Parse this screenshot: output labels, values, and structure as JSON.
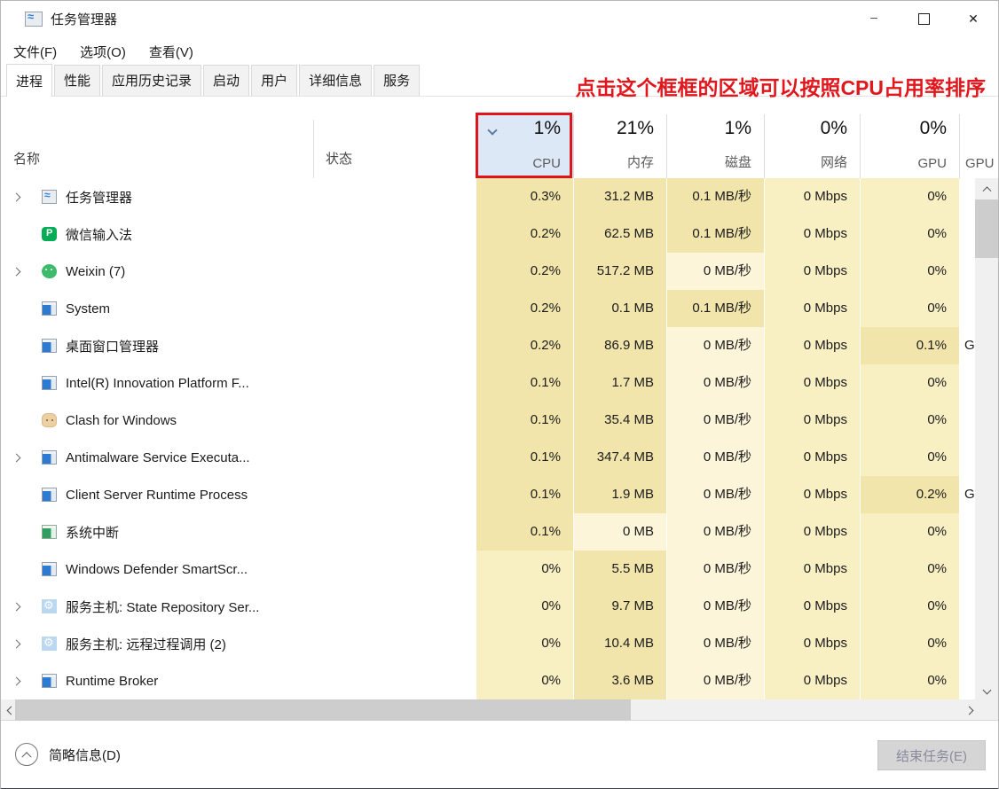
{
  "window": {
    "title": "任务管理器"
  },
  "menu": {
    "items": [
      "文件(F)",
      "选项(O)",
      "查看(V)"
    ]
  },
  "tabs": {
    "items": [
      {
        "label": "进程",
        "selected": true
      },
      {
        "label": "性能",
        "selected": false
      },
      {
        "label": "应用历史记录",
        "selected": false
      },
      {
        "label": "启动",
        "selected": false
      },
      {
        "label": "用户",
        "selected": false
      },
      {
        "label": "详细信息",
        "selected": false
      },
      {
        "label": "服务",
        "selected": false
      }
    ]
  },
  "annotation": {
    "text": "点击这个框框的区域可以按照CPU占用率排序"
  },
  "table": {
    "name_header": "名称",
    "status_header": "状态",
    "columns": [
      {
        "key": "cpu",
        "percent": "1%",
        "label": "CPU",
        "sorted": true
      },
      {
        "key": "memory",
        "percent": "21%",
        "label": "内存",
        "sorted": false
      },
      {
        "key": "disk",
        "percent": "1%",
        "label": "磁盘",
        "sorted": false
      },
      {
        "key": "network",
        "percent": "0%",
        "label": "网络",
        "sorted": false
      },
      {
        "key": "gpu",
        "percent": "0%",
        "label": "GPU",
        "sorted": false
      }
    ],
    "gpu_engine_header": "GPU",
    "rows": [
      {
        "name": "任务管理器",
        "icon": "taskmgr",
        "expandable": true,
        "status": "",
        "cpu": "0.3%",
        "memory": "31.2 MB",
        "disk": "0.1 MB/秒",
        "network": "0 Mbps",
        "gpu": "0%",
        "gpu_engine": ""
      },
      {
        "name": "微信输入法",
        "icon": "wechat-input",
        "expandable": false,
        "status": "",
        "cpu": "0.2%",
        "memory": "62.5 MB",
        "disk": "0.1 MB/秒",
        "network": "0 Mbps",
        "gpu": "0%",
        "gpu_engine": ""
      },
      {
        "name": "Weixin (7)",
        "icon": "wechat",
        "expandable": true,
        "status": "",
        "cpu": "0.2%",
        "memory": "517.2 MB",
        "disk": "0 MB/秒",
        "network": "0 Mbps",
        "gpu": "0%",
        "gpu_engine": ""
      },
      {
        "name": "System",
        "icon": "window",
        "expandable": false,
        "status": "",
        "cpu": "0.2%",
        "memory": "0.1 MB",
        "disk": "0.1 MB/秒",
        "network": "0 Mbps",
        "gpu": "0%",
        "gpu_engine": ""
      },
      {
        "name": "桌面窗口管理器",
        "icon": "window",
        "expandable": false,
        "status": "",
        "cpu": "0.2%",
        "memory": "86.9 MB",
        "disk": "0 MB/秒",
        "network": "0 Mbps",
        "gpu": "0.1%",
        "gpu_engine": "G"
      },
      {
        "name": "Intel(R) Innovation Platform F...",
        "icon": "window",
        "expandable": false,
        "status": "",
        "cpu": "0.1%",
        "memory": "1.7 MB",
        "disk": "0 MB/秒",
        "network": "0 Mbps",
        "gpu": "0%",
        "gpu_engine": ""
      },
      {
        "name": "Clash for Windows",
        "icon": "cat",
        "expandable": false,
        "status": "",
        "cpu": "0.1%",
        "memory": "35.4 MB",
        "disk": "0 MB/秒",
        "network": "0 Mbps",
        "gpu": "0%",
        "gpu_engine": ""
      },
      {
        "name": "Antimalware Service Executa...",
        "icon": "window",
        "expandable": true,
        "status": "",
        "cpu": "0.1%",
        "memory": "347.4 MB",
        "disk": "0 MB/秒",
        "network": "0 Mbps",
        "gpu": "0%",
        "gpu_engine": ""
      },
      {
        "name": "Client Server Runtime Process",
        "icon": "window",
        "expandable": false,
        "status": "",
        "cpu": "0.1%",
        "memory": "1.9 MB",
        "disk": "0 MB/秒",
        "network": "0 Mbps",
        "gpu": "0.2%",
        "gpu_engine": "G"
      },
      {
        "name": "系统中断",
        "icon": "interrupts",
        "expandable": false,
        "status": "",
        "cpu": "0.1%",
        "memory": "0 MB",
        "disk": "0 MB/秒",
        "network": "0 Mbps",
        "gpu": "0%",
        "gpu_engine": ""
      },
      {
        "name": "Windows Defender SmartScr...",
        "icon": "window",
        "expandable": false,
        "status": "",
        "cpu": "0%",
        "memory": "5.5 MB",
        "disk": "0 MB/秒",
        "network": "0 Mbps",
        "gpu": "0%",
        "gpu_engine": ""
      },
      {
        "name": "服务主机: State Repository Ser...",
        "icon": "gear",
        "expandable": true,
        "status": "",
        "cpu": "0%",
        "memory": "9.7 MB",
        "disk": "0 MB/秒",
        "network": "0 Mbps",
        "gpu": "0%",
        "gpu_engine": ""
      },
      {
        "name": "服务主机: 远程过程调用 (2)",
        "icon": "gear",
        "expandable": true,
        "status": "",
        "cpu": "0%",
        "memory": "10.4 MB",
        "disk": "0 MB/秒",
        "network": "0 Mbps",
        "gpu": "0%",
        "gpu_engine": ""
      },
      {
        "name": "Runtime Broker",
        "icon": "window",
        "expandable": true,
        "status": "",
        "cpu": "0%",
        "memory": "3.6 MB",
        "disk": "0 MB/秒",
        "network": "0 Mbps",
        "gpu": "0%",
        "gpu_engine": ""
      }
    ]
  },
  "footer": {
    "details_label": "简略信息(D)",
    "end_task_label": "结束任务(E)"
  },
  "colors": {
    "annotation_red": "#e0181e",
    "sorted_header_bg": "#dce8f6",
    "heat_high": "#f2e5ab",
    "heat_mid": "#f8efc3",
    "heat_low": "#fcf5d9"
  }
}
